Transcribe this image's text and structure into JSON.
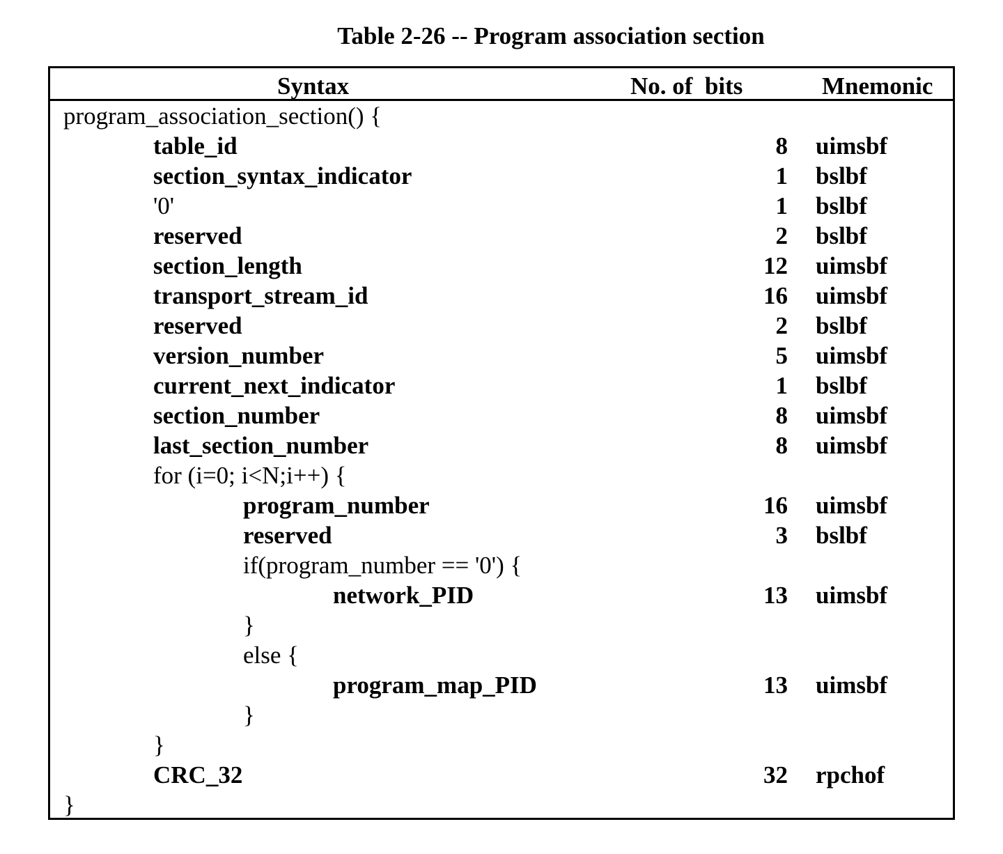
{
  "caption": "Table 2-26 -- Program association section",
  "header": {
    "syntax": "Syntax",
    "bits": "No. of  bits",
    "mnemonic": "Mnemonic"
  },
  "rows": [
    {
      "indent": 0,
      "bold": false,
      "text": "program_association_section() {",
      "bits": "",
      "mnemonic": ""
    },
    {
      "indent": 1,
      "bold": true,
      "text": "table_id",
      "bits": "8",
      "mnemonic": "uimsbf"
    },
    {
      "indent": 1,
      "bold": true,
      "text": "section_syntax_indicator",
      "bits": "1",
      "mnemonic": "bslbf"
    },
    {
      "indent": 1,
      "bold": false,
      "text": "'0'",
      "bits": "1",
      "mnemonic": "bslbf"
    },
    {
      "indent": 1,
      "bold": true,
      "text": "reserved",
      "bits": "2",
      "mnemonic": "bslbf"
    },
    {
      "indent": 1,
      "bold": true,
      "text": "section_length",
      "bits": "12",
      "mnemonic": "uimsbf"
    },
    {
      "indent": 1,
      "bold": true,
      "text": "transport_stream_id",
      "bits": "16",
      "mnemonic": "uimsbf"
    },
    {
      "indent": 1,
      "bold": true,
      "text": "reserved",
      "bits": "2",
      "mnemonic": "bslbf"
    },
    {
      "indent": 1,
      "bold": true,
      "text": "version_number",
      "bits": "5",
      "mnemonic": "uimsbf"
    },
    {
      "indent": 1,
      "bold": true,
      "text": "current_next_indicator",
      "bits": "1",
      "mnemonic": "bslbf"
    },
    {
      "indent": 1,
      "bold": true,
      "text": "section_number",
      "bits": "8",
      "mnemonic": "uimsbf"
    },
    {
      "indent": 1,
      "bold": true,
      "text": "last_section_number",
      "bits": "8",
      "mnemonic": "uimsbf"
    },
    {
      "indent": 1,
      "bold": false,
      "text": "for (i=0; i<N;i++) {",
      "bits": "",
      "mnemonic": ""
    },
    {
      "indent": 2,
      "bold": true,
      "text": "program_number",
      "bits": "16",
      "mnemonic": "uimsbf"
    },
    {
      "indent": 2,
      "bold": true,
      "text": "reserved",
      "bits": "3",
      "mnemonic": "bslbf"
    },
    {
      "indent": 2,
      "bold": false,
      "text": "if(program_number == '0') {",
      "bits": "",
      "mnemonic": ""
    },
    {
      "indent": 3,
      "bold": true,
      "text": "network_PID",
      "bits": "13",
      "mnemonic": "uimsbf"
    },
    {
      "indent": 2,
      "bold": false,
      "text": "}",
      "bits": "",
      "mnemonic": ""
    },
    {
      "indent": 2,
      "bold": false,
      "text": "else {",
      "bits": "",
      "mnemonic": ""
    },
    {
      "indent": 3,
      "bold": true,
      "text": "program_map_PID",
      "bits": "13",
      "mnemonic": "uimsbf"
    },
    {
      "indent": 2,
      "bold": false,
      "text": "}",
      "bits": "",
      "mnemonic": ""
    },
    {
      "indent": 1,
      "bold": false,
      "text": "}",
      "bits": "",
      "mnemonic": ""
    },
    {
      "indent": 1,
      "bold": true,
      "text": "CRC_32",
      "bits": "32",
      "mnemonic": "rpchof"
    },
    {
      "indent": 0,
      "bold": false,
      "text": "}",
      "bits": "",
      "mnemonic": ""
    }
  ]
}
